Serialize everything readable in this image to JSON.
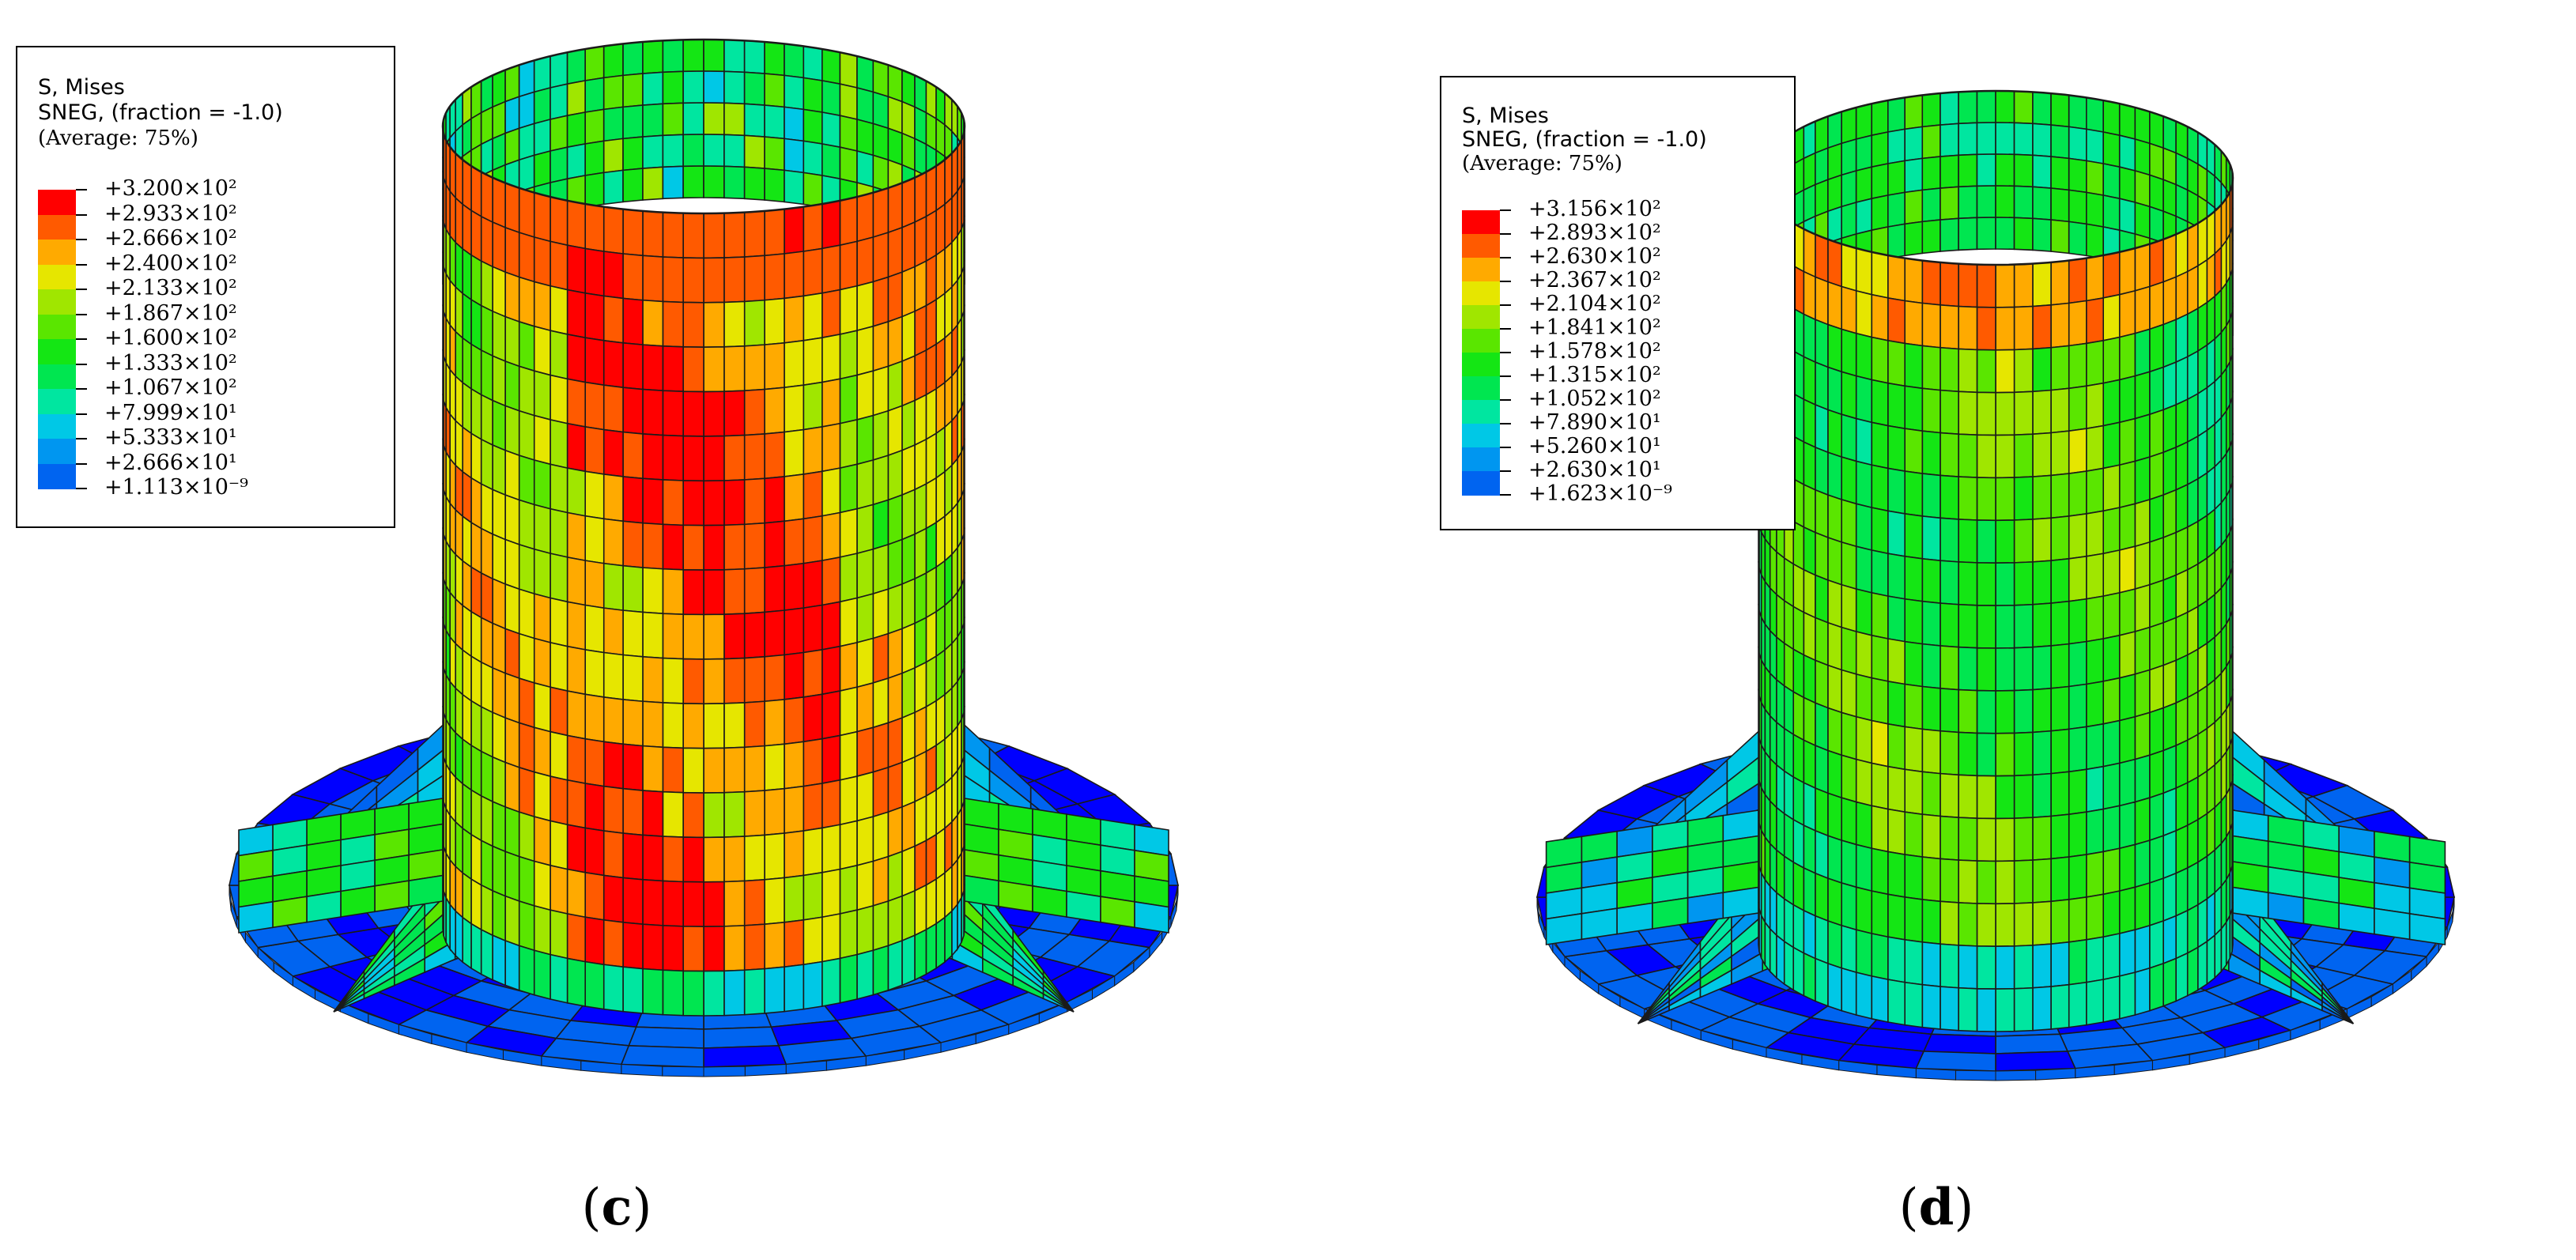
{
  "panels": [
    {
      "id": "c",
      "caption_open": "(",
      "caption_letter": "c",
      "caption_close": ")",
      "legend": {
        "line1": "S, Mises",
        "line2": "SNEG, (fraction = -1.0)",
        "line3": "(Average: 75%)",
        "values": [
          "+3.200×10²",
          "+2.933×10²",
          "+2.666×10²",
          "+2.400×10²",
          "+2.133×10²",
          "+1.867×10²",
          "+1.600×10²",
          "+1.333×10²",
          "+1.067×10²",
          "+7.999×10¹",
          "+5.333×10¹",
          "+2.666×10¹",
          "+1.113×10⁻⁹"
        ]
      },
      "stress_level": "high"
    },
    {
      "id": "d",
      "caption_open": "(",
      "caption_letter": "d",
      "caption_close": ")",
      "legend": {
        "line1": "S, Mises",
        "line2": "SNEG, (fraction = -1.0)",
        "line3": "(Average: 75%)",
        "values": [
          "+3.156×10²",
          "+2.893×10²",
          "+2.630×10²",
          "+2.367×10²",
          "+2.104×10²",
          "+1.841×10²",
          "+1.578×10²",
          "+1.315×10²",
          "+1.052×10²",
          "+7.890×10¹",
          "+5.260×10¹",
          "+2.630×10¹",
          "+1.623×10⁻⁹"
        ]
      },
      "stress_level": "medium"
    }
  ],
  "colormap": [
    "#ff0000",
    "#ff5a00",
    "#ffaa00",
    "#e6e600",
    "#a0e600",
    "#5ae600",
    "#14e614",
    "#00e650",
    "#00e6a0",
    "#00c8e6",
    "#0096f0",
    "#0064f0",
    "#0000ff"
  ]
}
